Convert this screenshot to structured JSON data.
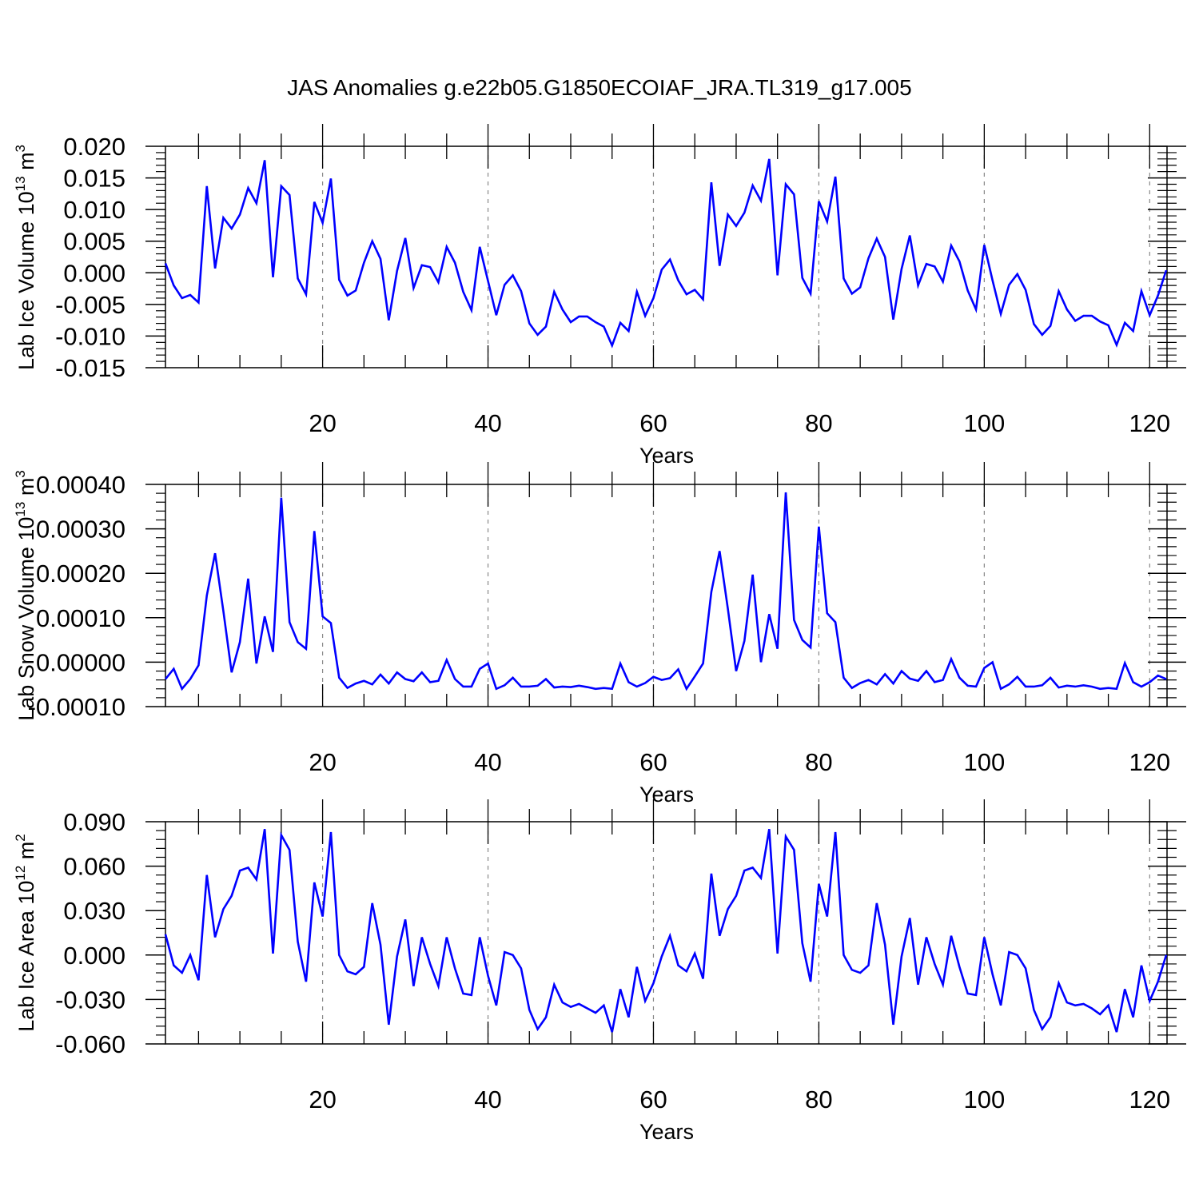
{
  "title": "JAS Anomalies g.e22b05.G1850ECOIAF_JRA.TL319_g17.005",
  "colors": {
    "line": "#0000ff",
    "axis": "#000000",
    "grid": "#888888"
  },
  "chart_data": [
    {
      "type": "line",
      "name": "lab-ice-volume",
      "ylabel_main": "Lab Ice Volume 10",
      "ylabel_sup": "13",
      "ylabel_unit": " m",
      "ylabel_unit_sup": "3",
      "xlabel": "Years",
      "xlim": [
        1,
        122
      ],
      "ylim": [
        -0.015,
        0.02
      ],
      "xticks": [
        20,
        40,
        60,
        80,
        100,
        120
      ],
      "yticks": [
        -0.015,
        -0.01,
        -0.005,
        0.0,
        0.005,
        0.01,
        0.015,
        0.02
      ],
      "ytick_labels": [
        "-0.015",
        "-0.010",
        "-0.005",
        "0.000",
        "0.005",
        "0.010",
        "0.015",
        "0.020"
      ],
      "x_start": 1,
      "values": [
        0.0015,
        -0.002,
        -0.004,
        -0.0035,
        -0.0047,
        0.0137,
        0.0007,
        0.0087,
        0.007,
        0.0092,
        0.0134,
        0.011,
        0.0178,
        -0.0007,
        0.0137,
        0.0123,
        -0.0009,
        -0.0034,
        0.0112,
        0.0079,
        0.0149,
        -0.0011,
        -0.0036,
        -0.0028,
        0.0016,
        0.005,
        0.0022,
        -0.0075,
        0.0003,
        0.0055,
        -0.0024,
        0.0012,
        0.0009,
        -0.0015,
        0.0041,
        0.0016,
        -0.003,
        -0.0059,
        0.0041,
        -0.0013,
        -0.0067,
        -0.0019,
        -0.0004,
        -0.0029,
        -0.008,
        -0.0098,
        -0.0085,
        -0.003,
        -0.0058,
        -0.0078,
        -0.0069,
        -0.0069,
        -0.0078,
        -0.0085,
        -0.0115,
        -0.0079,
        -0.0092,
        -0.003,
        -0.0068,
        -0.004,
        0.0005,
        0.0021,
        -0.0012,
        -0.0034,
        -0.0027,
        -0.0042,
        0.0143,
        0.0011,
        0.0092,
        0.0074,
        0.0095,
        0.0138,
        0.0114,
        0.018,
        -0.0004,
        0.014,
        0.0124,
        -0.0008,
        -0.0033,
        0.0113,
        0.0081,
        0.0152,
        -0.0009,
        -0.0033,
        -0.0023,
        0.0023,
        0.0054,
        0.0025,
        -0.0074,
        0.0006,
        0.0059,
        -0.002,
        0.0014,
        0.001,
        -0.0014,
        0.0043,
        0.0018,
        -0.0028,
        -0.0058,
        0.0044,
        -0.0012,
        -0.0065,
        -0.0019,
        -0.0002,
        -0.0027,
        -0.0081,
        -0.0098,
        -0.0084,
        -0.0029,
        -0.0058,
        -0.0076,
        -0.0068,
        -0.0068,
        -0.0077,
        -0.0083,
        -0.0114,
        -0.0079,
        -0.0092,
        -0.0029,
        -0.0067,
        -0.0036,
        0.0004
      ]
    },
    {
      "type": "line",
      "name": "lab-snow-volume",
      "ylabel_main": "Lab Snow Volume 10",
      "ylabel_sup": "13",
      "ylabel_unit": " m",
      "ylabel_unit_sup": "3",
      "xlabel": "Years",
      "xlim": [
        1,
        122
      ],
      "ylim": [
        -0.0001,
        0.0004
      ],
      "xticks": [
        20,
        40,
        60,
        80,
        100,
        120
      ],
      "yticks": [
        -0.0001,
        0.0,
        0.0001,
        0.0002,
        0.0003,
        0.0004
      ],
      "ytick_labels": [
        "-0.00010",
        "0.00000",
        "0.00010",
        "0.00020",
        "0.00030",
        "0.00040"
      ],
      "x_start": 1,
      "values": [
        -3.8e-05,
        -1.5e-05,
        -6e-05,
        -3.8e-05,
        -7e-06,
        0.00015,
        0.000245,
        0.000115,
        -2.3e-05,
        4.5e-05,
        0.000188,
        -3e-06,
        0.000103,
        2.3e-05,
        0.00037,
        9e-05,
        4.5e-05,
        3e-05,
        0.000295,
        0.000103,
        8.8e-05,
        -3.5e-05,
        -5.8e-05,
        -4.8e-05,
        -4.2e-05,
        -5e-05,
        -2.8e-05,
        -4.8e-05,
        -2.3e-05,
        -3.8e-05,
        -4.3e-05,
        -2.3e-05,
        -4.5e-05,
        -4.2e-05,
        5e-06,
        -3.8e-05,
        -5.5e-05,
        -5.5e-05,
        -1.5e-05,
        -3e-06,
        -6e-05,
        -5.2e-05,
        -3.5e-05,
        -5.5e-05,
        -5.5e-05,
        -5.3e-05,
        -3.8e-05,
        -5.7e-05,
        -5.5e-05,
        -5.6e-05,
        -5.3e-05,
        -5.6e-05,
        -6e-05,
        -5.8e-05,
        -6e-05,
        -3e-06,
        -4.5e-05,
        -5.5e-05,
        -4.7e-05,
        -3.3e-05,
        -4e-05,
        -3.6e-05,
        -1.6e-05,
        -6e-05,
        -3.2e-05,
        -3e-06,
        0.000158,
        0.00025,
        0.00012,
        -2e-05,
        4.8e-05,
        0.000197,
        0.0,
        0.000108,
        3e-05,
        0.000382,
        9.5e-05,
        5e-05,
        3.3e-05,
        0.000305,
        0.00011,
        9e-05,
        -3.5e-05,
        -5.8e-05,
        -4.7e-05,
        -4e-05,
        -5e-05,
        -2.7e-05,
        -4.8e-05,
        -2e-05,
        -3.7e-05,
        -4.2e-05,
        -2e-05,
        -4.5e-05,
        -4e-05,
        7e-06,
        -3.5e-05,
        -5.3e-05,
        -5.5e-05,
        -1.3e-05,
        0.0,
        -6e-05,
        -5e-05,
        -3.3e-05,
        -5.5e-05,
        -5.5e-05,
        -5.2e-05,
        -3.5e-05,
        -5.7e-05,
        -5.3e-05,
        -5.5e-05,
        -5.2e-05,
        -5.5e-05,
        -6e-05,
        -5.8e-05,
        -6e-05,
        -2e-06,
        -4.5e-05,
        -5.5e-05,
        -4.5e-05,
        -3e-05,
        -3.8e-05
      ]
    },
    {
      "type": "line",
      "name": "lab-ice-area",
      "ylabel_main": "Lab Ice Area 10",
      "ylabel_sup": "12",
      "ylabel_unit": " m",
      "ylabel_unit_sup": "2",
      "xlabel": "Years",
      "xlim": [
        1,
        122
      ],
      "ylim": [
        -0.06,
        0.09
      ],
      "xticks": [
        20,
        40,
        60,
        80,
        100,
        120
      ],
      "yticks": [
        -0.06,
        -0.03,
        0.0,
        0.03,
        0.06,
        0.09
      ],
      "ytick_labels": [
        "-0.060",
        "-0.030",
        "0.000",
        "0.030",
        "0.060",
        "0.090"
      ],
      "x_start": 1,
      "values": [
        0.014,
        -0.007,
        -0.012,
        0.0,
        -0.017,
        0.054,
        0.012,
        0.031,
        0.04,
        0.057,
        0.059,
        0.051,
        0.085,
        0.001,
        0.081,
        0.071,
        0.009,
        -0.018,
        0.049,
        0.026,
        0.083,
        0.0,
        -0.011,
        -0.013,
        -0.008,
        0.035,
        0.007,
        -0.047,
        -0.001,
        0.024,
        -0.021,
        0.012,
        -0.006,
        -0.021,
        0.012,
        -0.009,
        -0.026,
        -0.027,
        0.012,
        -0.014,
        -0.034,
        0.002,
        0.0,
        -0.009,
        -0.037,
        -0.05,
        -0.042,
        -0.02,
        -0.032,
        -0.035,
        -0.033,
        -0.036,
        -0.039,
        -0.034,
        -0.052,
        -0.023,
        -0.042,
        -0.008,
        -0.031,
        -0.019,
        -0.001,
        0.013,
        -0.007,
        -0.011,
        0.001,
        -0.016,
        0.055,
        0.013,
        0.031,
        0.04,
        0.057,
        0.059,
        0.052,
        0.085,
        0.001,
        0.08,
        0.071,
        0.008,
        -0.018,
        0.048,
        0.026,
        0.083,
        0.0,
        -0.01,
        -0.012,
        -0.007,
        0.035,
        0.007,
        -0.047,
        -0.001,
        0.025,
        -0.02,
        0.012,
        -0.006,
        -0.02,
        0.013,
        -0.008,
        -0.026,
        -0.027,
        0.012,
        -0.013,
        -0.034,
        0.002,
        0.0,
        -0.009,
        -0.037,
        -0.05,
        -0.042,
        -0.019,
        -0.032,
        -0.034,
        -0.033,
        -0.036,
        -0.04,
        -0.034,
        -0.052,
        -0.023,
        -0.042,
        -0.007,
        -0.031,
        -0.018,
        0.0
      ]
    }
  ]
}
